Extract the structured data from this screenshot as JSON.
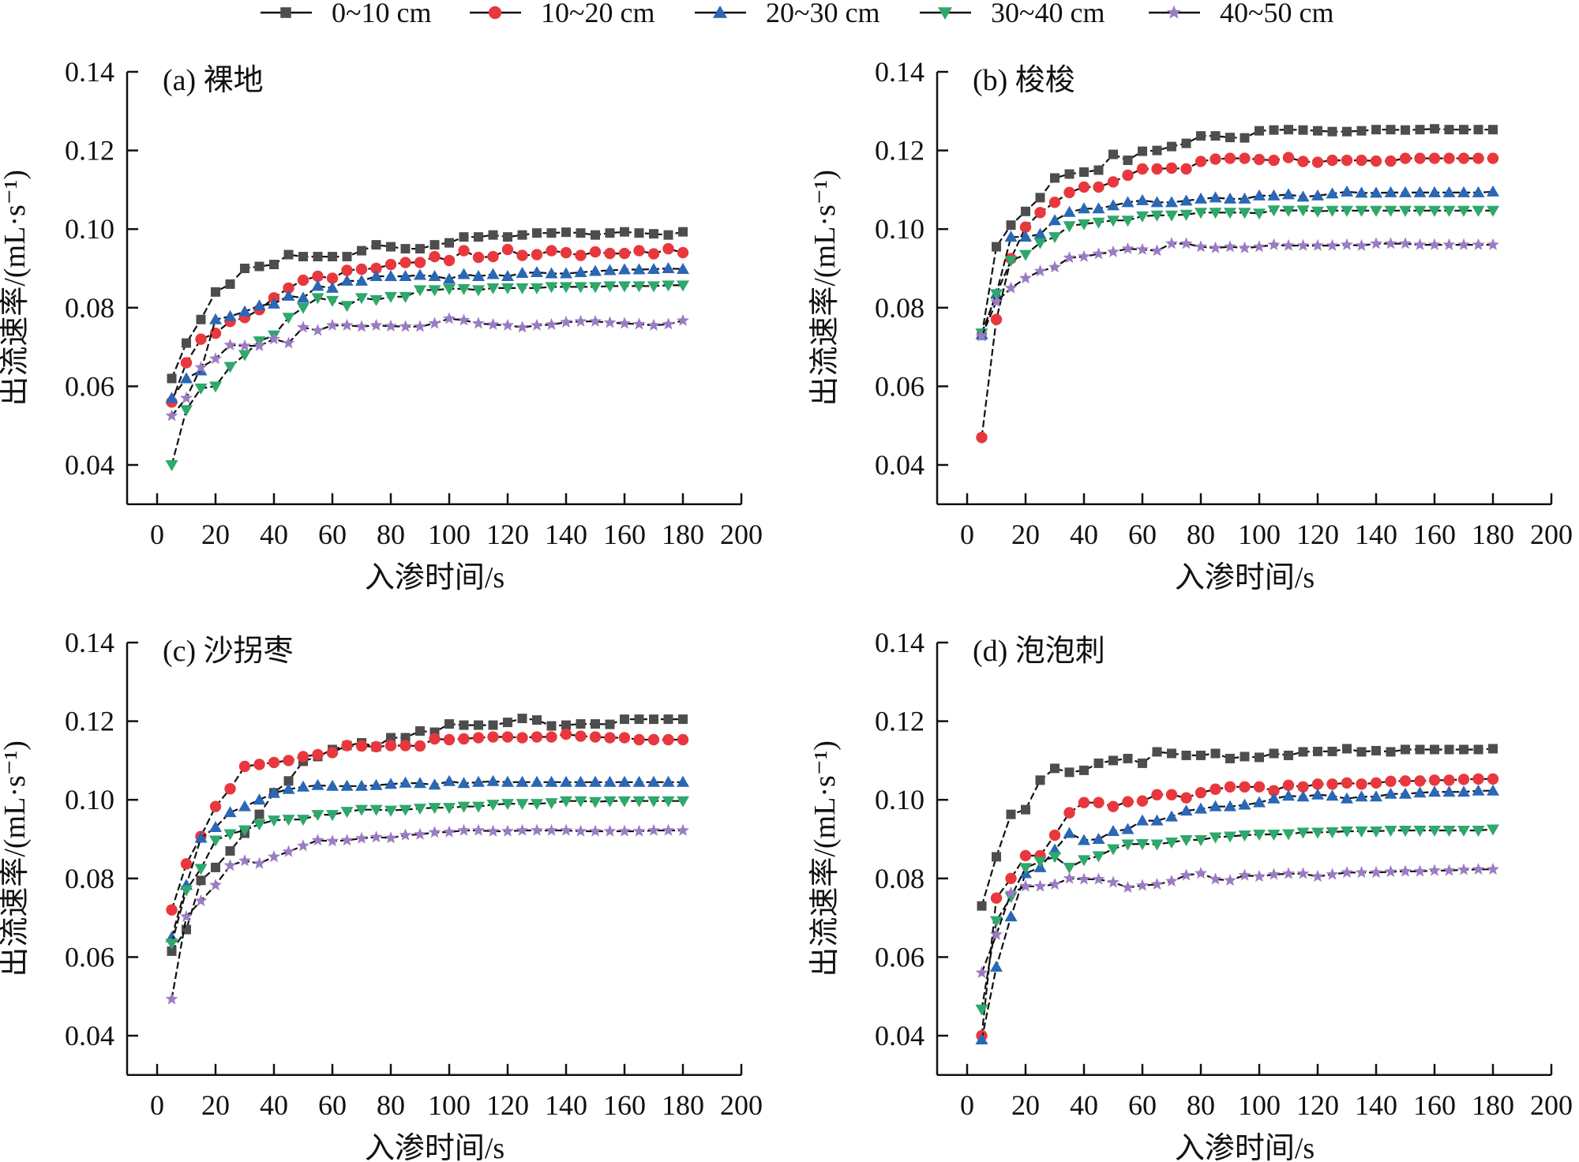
{
  "chart_data": {
    "type": "line",
    "legend": {
      "placement": "top-center",
      "entries": [
        "0~10 cm",
        "10~20 cm",
        "20~30 cm",
        "30~40 cm",
        "40~50 cm"
      ]
    },
    "series_styles": [
      {
        "name": "0~10 cm",
        "marker": "square",
        "color": "#4d4d4d"
      },
      {
        "name": "10~20 cm",
        "marker": "circle",
        "color": "#e8383d"
      },
      {
        "name": "20~30 cm",
        "marker": "triangle-up",
        "color": "#2a67b5"
      },
      {
        "name": "30~40 cm",
        "marker": "triangle-down",
        "color": "#2ea86b"
      },
      {
        "name": "40~50 cm",
        "marker": "star",
        "color": "#9b7cc4"
      }
    ],
    "x": [
      5,
      10,
      15,
      20,
      25,
      30,
      35,
      40,
      45,
      50,
      55,
      60,
      65,
      70,
      75,
      80,
      85,
      90,
      95,
      100,
      105,
      110,
      115,
      120,
      125,
      130,
      135,
      140,
      145,
      150,
      155,
      160,
      165,
      170,
      175,
      180
    ],
    "xlabel": "入渗时间/s",
    "ylabel": "出流速率/(mL·s⁻¹)",
    "xlim": [
      -10,
      200
    ],
    "ylim": [
      0.03,
      0.14
    ],
    "xticks": [
      0,
      20,
      40,
      60,
      80,
      100,
      120,
      140,
      160,
      180,
      200
    ],
    "xtick_labels": [
      "0",
      "20",
      "40",
      "60",
      "80",
      "100",
      "120",
      "140",
      "160",
      "180",
      "200"
    ],
    "yticks": [
      0.04,
      0.06,
      0.08,
      0.1,
      0.12,
      0.14
    ],
    "ytick_labels": [
      "0.04",
      "0.06",
      "0.08",
      "0.10",
      "0.12",
      "0.14"
    ],
    "grid": false,
    "panels": [
      {
        "title": "(a) 裸地",
        "series": [
          {
            "name": "0~10 cm",
            "values": [
              0.062,
              0.071,
              0.077,
              0.084,
              0.086,
              0.09,
              0.0905,
              0.091,
              0.0935,
              0.093,
              0.093,
              0.093,
              0.093,
              0.0945,
              0.096,
              0.0955,
              0.095,
              0.095,
              0.096,
              0.0965,
              0.098,
              0.098,
              0.0985,
              0.098,
              0.0985,
              0.099,
              0.099,
              0.0992,
              0.099,
              0.0985,
              0.099,
              0.0993,
              0.099,
              0.0988,
              0.0985,
              0.0993
            ]
          },
          {
            "name": "10~20 cm",
            "values": [
              0.056,
              0.066,
              0.072,
              0.0735,
              0.0765,
              0.0775,
              0.0795,
              0.0825,
              0.085,
              0.087,
              0.088,
              0.0875,
              0.0895,
              0.0898,
              0.09,
              0.091,
              0.0915,
              0.0915,
              0.093,
              0.092,
              0.0945,
              0.0928,
              0.093,
              0.0948,
              0.0933,
              0.0935,
              0.0945,
              0.094,
              0.0933,
              0.0942,
              0.0938,
              0.0938,
              0.0945,
              0.0937,
              0.095,
              0.094
            ]
          },
          {
            "name": "20~30 cm",
            "values": [
              0.057,
              0.062,
              0.064,
              0.077,
              0.0778,
              0.079,
              0.0805,
              0.081,
              0.083,
              0.0825,
              0.0855,
              0.085,
              0.0868,
              0.0868,
              0.088,
              0.088,
              0.088,
              0.0883,
              0.088,
              0.0873,
              0.0885,
              0.088,
              0.0885,
              0.088,
              0.0888,
              0.089,
              0.0887,
              0.0887,
              0.089,
              0.0893,
              0.0895,
              0.0897,
              0.0897,
              0.0898,
              0.09,
              0.0898
            ]
          },
          {
            "name": "30~40 cm",
            "values": [
              0.04,
              0.054,
              0.0595,
              0.06,
              0.065,
              0.068,
              0.0715,
              0.073,
              0.0775,
              0.08,
              0.0825,
              0.0818,
              0.0805,
              0.0825,
              0.082,
              0.0828,
              0.0828,
              0.0845,
              0.0845,
              0.0848,
              0.0848,
              0.0845,
              0.085,
              0.085,
              0.085,
              0.085,
              0.0853,
              0.0853,
              0.0853,
              0.0853,
              0.0855,
              0.0855,
              0.0855,
              0.0855,
              0.0857,
              0.0857
            ]
          },
          {
            "name": "40~50 cm",
            "values": [
              0.0525,
              0.057,
              0.0648,
              0.067,
              0.0705,
              0.0703,
              0.0703,
              0.072,
              0.071,
              0.075,
              0.0742,
              0.0755,
              0.0755,
              0.0752,
              0.0755,
              0.0753,
              0.0752,
              0.0752,
              0.076,
              0.0772,
              0.0768,
              0.076,
              0.0757,
              0.0755,
              0.075,
              0.0755,
              0.0757,
              0.0763,
              0.0765,
              0.0765,
              0.0762,
              0.076,
              0.0758,
              0.0755,
              0.0758,
              0.0767
            ]
          }
        ]
      },
      {
        "title": "(b) 梭梭",
        "series": [
          {
            "name": "0~10 cm",
            "values": [
              0.073,
              0.0955,
              0.101,
              0.1045,
              0.108,
              0.113,
              0.114,
              0.1145,
              0.115,
              0.119,
              0.1175,
              0.1198,
              0.12,
              0.121,
              0.1218,
              0.1237,
              0.1237,
              0.1233,
              0.1232,
              0.125,
              0.1252,
              0.1253,
              0.1252,
              0.125,
              0.1248,
              0.1248,
              0.125,
              0.1253,
              0.1253,
              0.1252,
              0.1253,
              0.1255,
              0.1253,
              0.1253,
              0.1253,
              0.1253
            ]
          },
          {
            "name": "10~20 cm",
            "values": [
              0.047,
              0.077,
              0.0925,
              0.1005,
              0.1042,
              0.1068,
              0.1093,
              0.1107,
              0.1107,
              0.112,
              0.1137,
              0.1153,
              0.1153,
              0.1155,
              0.1153,
              0.1172,
              0.1178,
              0.118,
              0.118,
              0.1177,
              0.1175,
              0.1182,
              0.1172,
              0.117,
              0.1175,
              0.1175,
              0.1175,
              0.1173,
              0.1173,
              0.118,
              0.118,
              0.118,
              0.118,
              0.118,
              0.118,
              0.118
            ]
          },
          {
            "name": "20~30 cm",
            "values": [
              0.0732,
              0.0835,
              0.098,
              0.098,
              0.0987,
              0.1022,
              0.1043,
              0.1052,
              0.1052,
              0.106,
              0.1068,
              0.1073,
              0.1068,
              0.1068,
              0.1072,
              0.1077,
              0.108,
              0.1077,
              0.1077,
              0.1085,
              0.1085,
              0.1088,
              0.1082,
              0.1085,
              0.109,
              0.1095,
              0.1092,
              0.1092,
              0.1093,
              0.1093,
              0.1093,
              0.1093,
              0.1093,
              0.1093,
              0.1093,
              0.1095
            ]
          },
          {
            "name": "30~40 cm",
            "values": [
              0.0735,
              0.0835,
              0.092,
              0.0935,
              0.0965,
              0.098,
              0.1008,
              0.1013,
              0.1017,
              0.1022,
              0.1022,
              0.1033,
              0.1035,
              0.1035,
              0.1037,
              0.1042,
              0.1042,
              0.1042,
              0.1042,
              0.104,
              0.1048,
              0.1047,
              0.1048,
              0.1045,
              0.1047,
              0.1047,
              0.1047,
              0.1047,
              0.1047,
              0.1047,
              0.1047,
              0.1047,
              0.1047,
              0.1047,
              0.1047,
              0.1047
            ]
          },
          {
            "name": "40~50 cm",
            "values": [
              0.0728,
              0.0815,
              0.085,
              0.0875,
              0.0893,
              0.0903,
              0.0927,
              0.093,
              0.0937,
              0.0942,
              0.095,
              0.0948,
              0.0945,
              0.0963,
              0.0963,
              0.0955,
              0.0952,
              0.0955,
              0.0952,
              0.0955,
              0.096,
              0.0958,
              0.0958,
              0.0958,
              0.0958,
              0.096,
              0.0958,
              0.0963,
              0.0963,
              0.0963,
              0.096,
              0.096,
              0.096,
              0.096,
              0.096,
              0.096
            ]
          }
        ]
      },
      {
        "title": "(c) 沙拐枣",
        "series": [
          {
            "name": "0~10 cm",
            "values": [
              0.0615,
              0.067,
              0.0795,
              0.0828,
              0.087,
              0.0915,
              0.0963,
              0.1018,
              0.1048,
              0.1098,
              0.111,
              0.1128,
              0.1138,
              0.1145,
              0.1135,
              0.1158,
              0.1158,
              0.1175,
              0.1172,
              0.1193,
              0.119,
              0.119,
              0.119,
              0.1197,
              0.1207,
              0.1203,
              0.1188,
              0.119,
              0.1193,
              0.1193,
              0.1192,
              0.1205,
              0.1205,
              0.1205,
              0.1205,
              0.1205
            ]
          },
          {
            "name": "10~20 cm",
            "values": [
              0.072,
              0.0837,
              0.0907,
              0.0983,
              0.1028,
              0.1085,
              0.109,
              0.1095,
              0.11,
              0.111,
              0.1115,
              0.112,
              0.1138,
              0.1137,
              0.1135,
              0.1138,
              0.1138,
              0.1137,
              0.1155,
              0.1153,
              0.1155,
              0.1158,
              0.116,
              0.116,
              0.1158,
              0.116,
              0.116,
              0.1167,
              0.1162,
              0.116,
              0.1158,
              0.1158,
              0.1153,
              0.1153,
              0.1153,
              0.1153
            ]
          },
          {
            "name": "20~30 cm",
            "values": [
              0.065,
              0.0783,
              0.0903,
              0.093,
              0.0968,
              0.0983,
              0.1,
              0.1017,
              0.1027,
              0.1033,
              0.1037,
              0.1035,
              0.1035,
              0.1035,
              0.1037,
              0.104,
              0.1043,
              0.1042,
              0.1038,
              0.1047,
              0.1042,
              0.1045,
              0.1047,
              0.1045,
              0.1045,
              0.1045,
              0.1045,
              0.1045,
              0.1045,
              0.1045,
              0.1045,
              0.1045,
              0.1045,
              0.1045,
              0.1045,
              0.1045
            ]
          },
          {
            "name": "30~40 cm",
            "values": [
              0.0635,
              0.077,
              0.0825,
              0.0897,
              0.0913,
              0.0923,
              0.0938,
              0.0948,
              0.095,
              0.095,
              0.0962,
              0.0962,
              0.097,
              0.0975,
              0.0975,
              0.0973,
              0.0975,
              0.0978,
              0.098,
              0.098,
              0.0983,
              0.0983,
              0.0988,
              0.099,
              0.099,
              0.099,
              0.0992,
              0.0997,
              0.0997,
              0.0995,
              0.0997,
              0.0997,
              0.0997,
              0.0997,
              0.0997,
              0.0997
            ]
          },
          {
            "name": "40~50 cm",
            "values": [
              0.0493,
              0.0703,
              0.0743,
              0.0783,
              0.0833,
              0.0845,
              0.0838,
              0.0855,
              0.0868,
              0.0883,
              0.0897,
              0.0895,
              0.0897,
              0.0902,
              0.0905,
              0.0903,
              0.091,
              0.0912,
              0.0917,
              0.0918,
              0.0922,
              0.0922,
              0.092,
              0.092,
              0.0922,
              0.0922,
              0.0922,
              0.0922,
              0.092,
              0.092,
              0.092,
              0.092,
              0.092,
              0.0922,
              0.0922,
              0.0922
            ]
          }
        ]
      },
      {
        "title": "(d) 泡泡刺",
        "series": [
          {
            "name": "0~10 cm",
            "values": [
              0.073,
              0.0855,
              0.0963,
              0.0975,
              0.105,
              0.108,
              0.107,
              0.1075,
              0.1093,
              0.11,
              0.1105,
              0.1093,
              0.1122,
              0.1118,
              0.1113,
              0.1113,
              0.1118,
              0.1105,
              0.111,
              0.1108,
              0.1118,
              0.1113,
              0.1122,
              0.1123,
              0.1123,
              0.113,
              0.1122,
              0.1125,
              0.1122,
              0.1128,
              0.1128,
              0.1128,
              0.1128,
              0.1128,
              0.1128,
              0.113
            ]
          },
          {
            "name": "10~20 cm",
            "values": [
              0.04,
              0.075,
              0.08,
              0.0858,
              0.0858,
              0.091,
              0.0967,
              0.0993,
              0.0993,
              0.0983,
              0.0995,
              0.0997,
              0.1013,
              0.1013,
              0.1005,
              0.1018,
              0.1027,
              0.1033,
              0.1033,
              0.1033,
              0.1023,
              0.1037,
              0.1033,
              0.104,
              0.104,
              0.1043,
              0.104,
              0.1043,
              0.1047,
              0.1048,
              0.1048,
              0.105,
              0.105,
              0.1052,
              0.1053,
              0.1053
            ]
          },
          {
            "name": "20~30 cm",
            "values": [
              0.039,
              0.0575,
              0.0703,
              0.0813,
              0.0828,
              0.0873,
              0.0915,
              0.0897,
              0.09,
              0.092,
              0.0925,
              0.0947,
              0.0947,
              0.0957,
              0.0972,
              0.0977,
              0.0983,
              0.0983,
              0.0987,
              0.0993,
              0.1003,
              0.101,
              0.1008,
              0.1013,
              0.101,
              0.1003,
              0.1008,
              0.1008,
              0.1015,
              0.1015,
              0.1018,
              0.102,
              0.102,
              0.102,
              0.1023,
              0.1023
            ]
          },
          {
            "name": "30~40 cm",
            "values": [
              0.0467,
              0.0692,
              0.0753,
              0.0827,
              0.0843,
              0.0855,
              0.0828,
              0.0847,
              0.0857,
              0.0875,
              0.0887,
              0.0888,
              0.0887,
              0.0892,
              0.0898,
              0.0898,
              0.0905,
              0.0907,
              0.091,
              0.0912,
              0.0912,
              0.0913,
              0.0917,
              0.0917,
              0.0918,
              0.092,
              0.092,
              0.092,
              0.0922,
              0.0922,
              0.0922,
              0.0922,
              0.0922,
              0.0922,
              0.0922,
              0.0925
            ]
          },
          {
            "name": "40~50 cm",
            "values": [
              0.056,
              0.0657,
              0.0763,
              0.078,
              0.078,
              0.0785,
              0.08,
              0.0798,
              0.0798,
              0.079,
              0.0777,
              0.0782,
              0.0785,
              0.0793,
              0.0808,
              0.0813,
              0.0798,
              0.0795,
              0.0808,
              0.0805,
              0.081,
              0.0812,
              0.0812,
              0.0805,
              0.081,
              0.0815,
              0.0815,
              0.0815,
              0.0817,
              0.0818,
              0.0818,
              0.082,
              0.082,
              0.0822,
              0.0823,
              0.0823
            ]
          }
        ]
      }
    ]
  }
}
